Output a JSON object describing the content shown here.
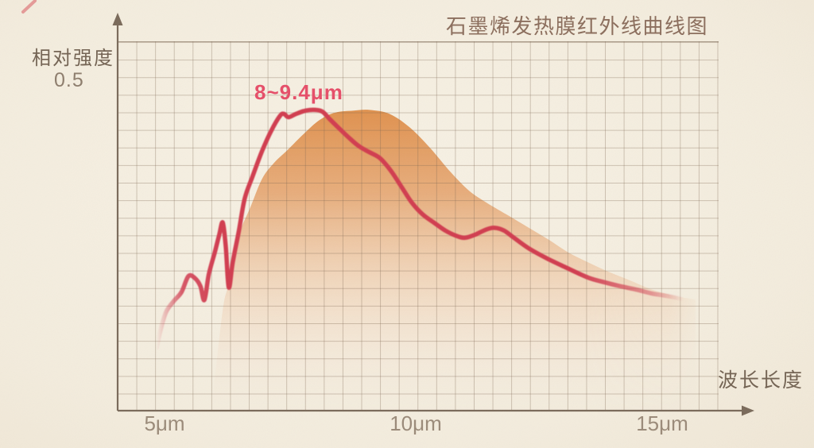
{
  "page": {
    "background_color": "#f3ecdf"
  },
  "chart_data": {
    "type": "line",
    "title": "石墨烯发热膜红外线曲线图",
    "xlabel": "波长长度",
    "ylabel": "相对强度",
    "y_tick_label": "0.5",
    "x_tick_labels": [
      "5μm",
      "10μm",
      "15μm"
    ],
    "x_tick_values_um": [
      5,
      10,
      15
    ],
    "annotation": "8~9.4μm",
    "x_range_um": [
      4.05,
      16.1
    ],
    "y_range": [
      0,
      0.56
    ],
    "grid": true,
    "legend": "none",
    "colors": {
      "curve": "#d13c50",
      "annotation_text": "#e5506a",
      "area_top": "#de8d48",
      "area_bottom": "#f7e9da",
      "axis": "#7a6a5a",
      "grid_line": "#8a7460",
      "title_text": "#8c6f5e",
      "tick_text": "#9b8b7a"
    },
    "series": [
      {
        "name": "infrared-intensity-curve",
        "style": "line",
        "color": "#d13c50",
        "points_um_intensity": [
          [
            4.84,
            0.095
          ],
          [
            4.92,
            0.122
          ],
          [
            5.03,
            0.149
          ],
          [
            5.18,
            0.165
          ],
          [
            5.34,
            0.179
          ],
          [
            5.48,
            0.203
          ],
          [
            5.61,
            0.2
          ],
          [
            5.72,
            0.188
          ],
          [
            5.8,
            0.167
          ],
          [
            5.89,
            0.206
          ],
          [
            6.01,
            0.239
          ],
          [
            6.1,
            0.266
          ],
          [
            6.17,
            0.284
          ],
          [
            6.23,
            0.248
          ],
          [
            6.29,
            0.186
          ],
          [
            6.37,
            0.224
          ],
          [
            6.49,
            0.27
          ],
          [
            6.61,
            0.32
          ],
          [
            6.77,
            0.354
          ],
          [
            6.96,
            0.392
          ],
          [
            7.14,
            0.422
          ],
          [
            7.32,
            0.445
          ],
          [
            7.4,
            0.448
          ],
          [
            7.49,
            0.443
          ],
          [
            7.64,
            0.448
          ],
          [
            7.84,
            0.453
          ],
          [
            8.04,
            0.454
          ],
          [
            8.18,
            0.451
          ],
          [
            8.32,
            0.44
          ],
          [
            8.51,
            0.426
          ],
          [
            8.72,
            0.411
          ],
          [
            8.91,
            0.399
          ],
          [
            9.12,
            0.39
          ],
          [
            9.33,
            0.381
          ],
          [
            9.55,
            0.362
          ],
          [
            9.76,
            0.338
          ],
          [
            9.97,
            0.314
          ],
          [
            10.19,
            0.296
          ],
          [
            10.43,
            0.283
          ],
          [
            10.64,
            0.272
          ],
          [
            10.86,
            0.264
          ],
          [
            11.04,
            0.261
          ],
          [
            11.25,
            0.266
          ],
          [
            11.45,
            0.273
          ],
          [
            11.62,
            0.276
          ],
          [
            11.82,
            0.272
          ],
          [
            12.02,
            0.261
          ],
          [
            12.32,
            0.245
          ],
          [
            12.68,
            0.23
          ],
          [
            13.07,
            0.216
          ],
          [
            13.51,
            0.201
          ],
          [
            13.83,
            0.194
          ],
          [
            14.15,
            0.188
          ],
          [
            14.47,
            0.183
          ],
          [
            14.79,
            0.177
          ],
          [
            15.11,
            0.173
          ],
          [
            15.4,
            0.169
          ]
        ]
      },
      {
        "name": "smooth-radiation-area",
        "style": "area",
        "color": "#de8d48",
        "points_um_intensity": [
          [
            5.97,
            0.02
          ],
          [
            6.17,
            0.152
          ],
          [
            6.29,
            0.192
          ],
          [
            6.45,
            0.257
          ],
          [
            6.73,
            0.308
          ],
          [
            6.96,
            0.35
          ],
          [
            7.2,
            0.374
          ],
          [
            7.48,
            0.394
          ],
          [
            7.8,
            0.418
          ],
          [
            8.12,
            0.439
          ],
          [
            8.43,
            0.45
          ],
          [
            8.8,
            0.453
          ],
          [
            9.12,
            0.454
          ],
          [
            9.52,
            0.448
          ],
          [
            9.92,
            0.428
          ],
          [
            10.32,
            0.398
          ],
          [
            10.75,
            0.36
          ],
          [
            11.12,
            0.332
          ],
          [
            11.47,
            0.314
          ],
          [
            11.92,
            0.294
          ],
          [
            12.32,
            0.276
          ],
          [
            12.72,
            0.258
          ],
          [
            13.11,
            0.239
          ],
          [
            13.51,
            0.224
          ],
          [
            13.91,
            0.21
          ],
          [
            14.31,
            0.198
          ],
          [
            14.79,
            0.183
          ],
          [
            15.27,
            0.173
          ],
          [
            15.67,
            0.168
          ]
        ]
      }
    ]
  }
}
